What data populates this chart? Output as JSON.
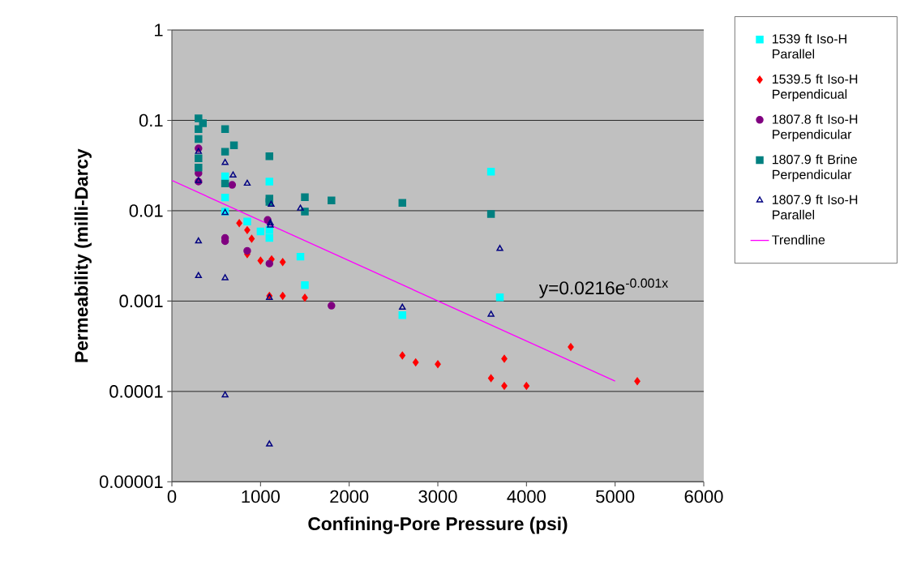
{
  "chart_data": {
    "type": "scatter",
    "xlabel": "Confining-Pore Pressure (psi)",
    "ylabel": "Permeability (milli-Darcy",
    "log": "y",
    "grid": "y",
    "legend": "right",
    "xlim": [
      0,
      6000
    ],
    "xticks": [
      0,
      1000,
      2000,
      3000,
      4000,
      5000,
      6000
    ],
    "ylim": [
      1e-05,
      1
    ],
    "yticks": [
      {
        "value": 1,
        "label": "1"
      },
      {
        "value": 0.1,
        "label": "0.1"
      },
      {
        "value": 0.01,
        "label": "0.01"
      },
      {
        "value": 0.001,
        "label": "0.001"
      },
      {
        "value": 0.0001,
        "label": "0.0001"
      },
      {
        "value": 1e-05,
        "label": "0.00001"
      }
    ],
    "annotations": [
      "y=0.0216e$^{-0.001x}$"
    ],
    "series": [
      {
        "name": "1539 ft Iso-H Parallel",
        "color": "#00ffff",
        "marker": "square",
        "x": [
          600,
          600,
          600,
          1100,
          850,
          1000,
          1100,
          1100,
          1450,
          1500,
          3600,
          3700,
          2600
        ],
        "values": [
          0.024,
          0.014,
          0.0098,
          0.021,
          0.0076,
          0.0059,
          0.0061,
          0.005,
          0.0031,
          0.0015,
          0.027,
          0.0011,
          0.0007
        ]
      },
      {
        "name": "1539.5 ft Iso-H Perpendicual",
        "color": "#ff0000",
        "marker": "diamond",
        "x": [
          760,
          850,
          900,
          850,
          1000,
          1125,
          1250,
          1100,
          1250,
          1500,
          2600,
          2750,
          3000,
          3600,
          3750,
          4000,
          3750,
          4500,
          5250
        ],
        "values": [
          0.0073,
          0.0061,
          0.0049,
          0.0033,
          0.0028,
          0.0029,
          0.0027,
          0.00114,
          0.00114,
          0.00109,
          0.00025,
          0.00021,
          0.0002,
          0.00014,
          0.000115,
          0.000115,
          0.00023,
          0.00031,
          0.00013
        ]
      },
      {
        "name": "1807.8 ft Iso-H Perpendicular",
        "color": "#800080",
        "marker": "circle",
        "x": [
          300,
          300,
          300,
          680,
          1080,
          600,
          600,
          850,
          1100,
          1800
        ],
        "values": [
          0.049,
          0.026,
          0.021,
          0.0193,
          0.0079,
          0.005,
          0.0046,
          0.0036,
          0.0026,
          0.00089
        ]
      },
      {
        "name": "1807.9 ft Brine Perpendicular",
        "color": "#008080",
        "marker": "square",
        "x": [
          300,
          350,
          300,
          300,
          300,
          300,
          600,
          700,
          600,
          1100,
          600,
          1100,
          1100,
          1500,
          1500,
          1800,
          2600,
          3600
        ],
        "values": [
          0.105,
          0.093,
          0.08,
          0.062,
          0.038,
          0.03,
          0.08,
          0.053,
          0.045,
          0.04,
          0.02,
          0.0136,
          0.0125,
          0.0141,
          0.0098,
          0.013,
          0.0122,
          0.0092
        ]
      },
      {
        "name": "1807.9 ft Iso-H Parallel",
        "color": "#000080",
        "marker": "triangle",
        "x": [
          300,
          300,
          600,
          690,
          850,
          1120,
          1450,
          600,
          1110,
          1110,
          300,
          300,
          600,
          1100,
          600,
          1100,
          3700,
          2600,
          3600
        ],
        "values": [
          0.045,
          0.0214,
          0.034,
          0.0247,
          0.02,
          0.0117,
          0.0106,
          0.0095,
          0.0073,
          0.0069,
          0.0046,
          0.0019,
          0.0018,
          0.00109,
          9.1e-05,
          2.6e-05,
          0.0038,
          0.00085,
          0.00071
        ]
      },
      {
        "name": "Trendline",
        "type": "line",
        "color": "#ff00ff",
        "marker": "none",
        "x": [
          0,
          5000
        ],
        "values": [
          0.0216,
          0.00013
        ]
      }
    ]
  }
}
